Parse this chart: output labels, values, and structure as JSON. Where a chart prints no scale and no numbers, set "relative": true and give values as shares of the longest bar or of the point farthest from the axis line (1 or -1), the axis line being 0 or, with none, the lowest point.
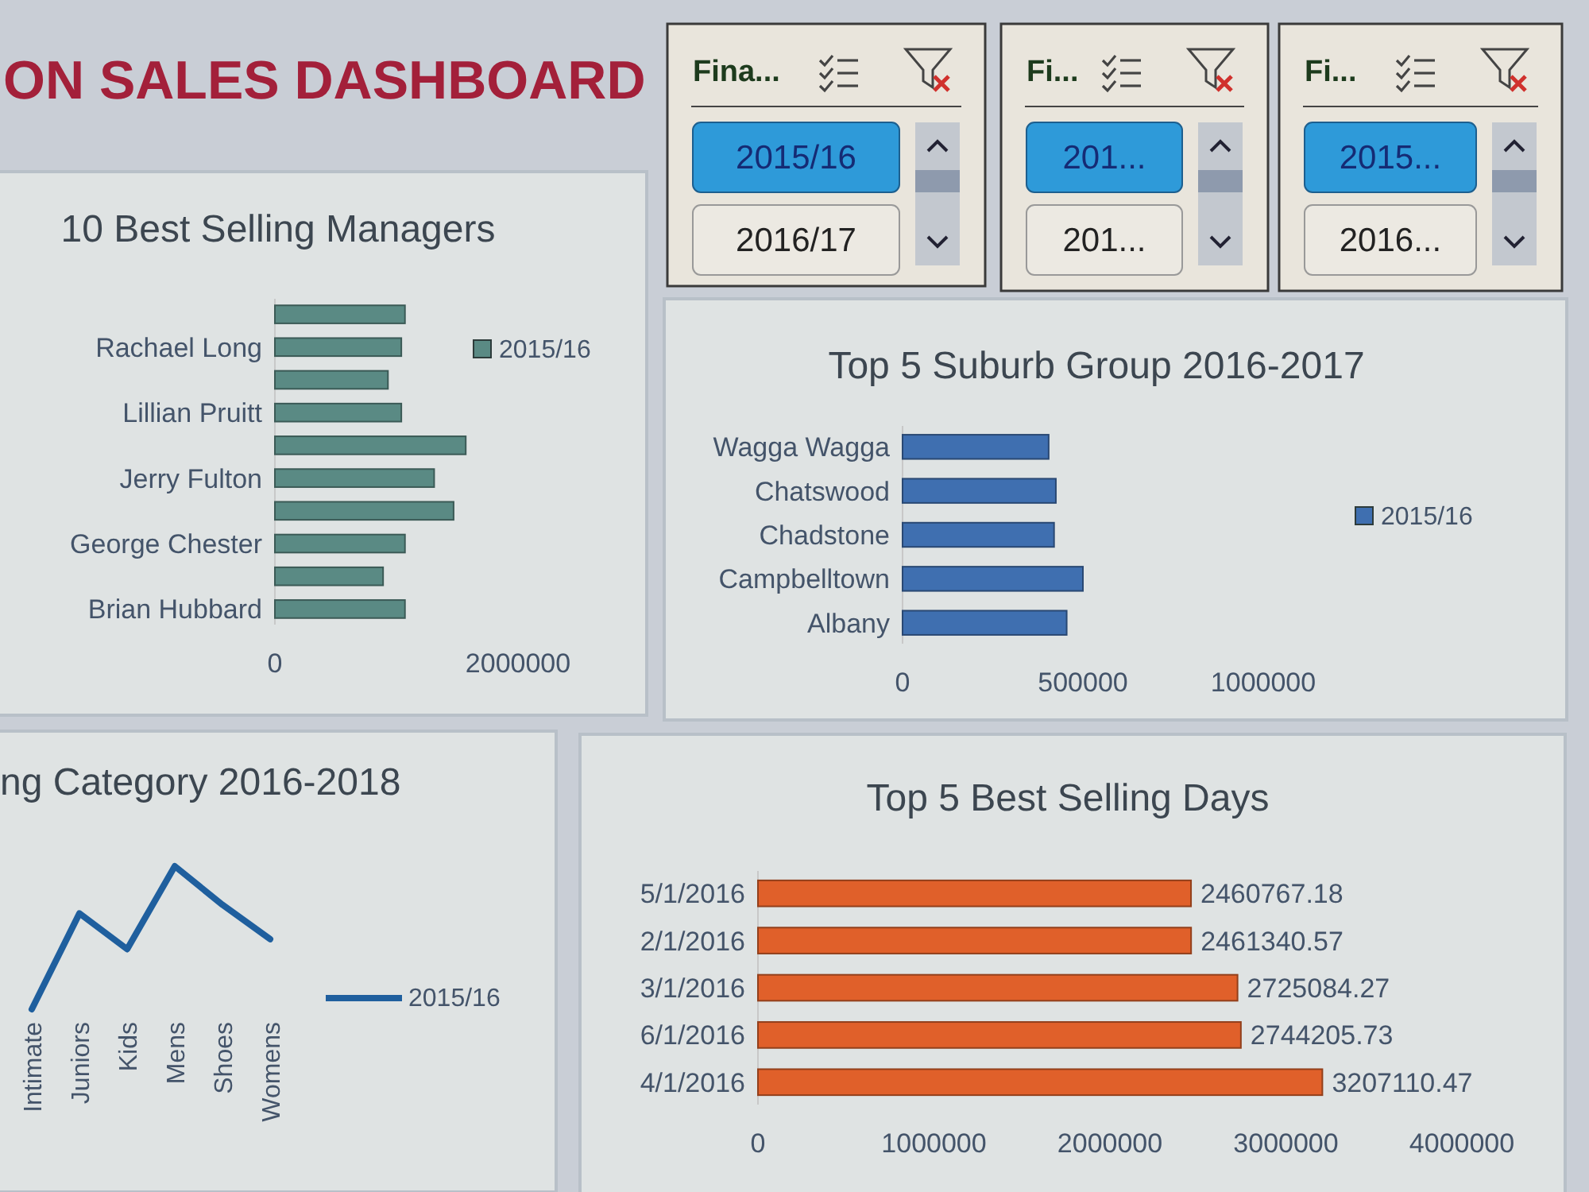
{
  "chart_data": [
    {
      "type": "other",
      "title": "ON SALES DASHBOARD"
    },
    {
      "type": "other",
      "title": "Fina...",
      "annotations": [
        "2015/16",
        "2016/17"
      ]
    },
    {
      "type": "other",
      "title": "Fi...",
      "annotations": [
        "201...",
        "201..."
      ]
    },
    {
      "type": "other",
      "title": "Fi...",
      "annotations": [
        "2015...",
        "2016..."
      ]
    },
    {
      "type": "bar",
      "orientation": "horizontal",
      "title": "10 Best Selling Managers",
      "categories": [
        null,
        "Rachael Long",
        null,
        "Lillian Pruitt",
        null,
        "Jerry Fulton",
        null,
        "George Chester",
        null,
        "Brian Hubbard"
      ],
      "series": [
        {
          "name": "2015/16",
          "color": "#5a8a84",
          "values": [
            1070000,
            1040000,
            930000,
            1040000,
            1570000,
            1310000,
            1470000,
            1070000,
            890000,
            1070000
          ]
        }
      ],
      "xlim": [
        0,
        2000000
      ],
      "xticks": [
        0,
        2000000
      ],
      "legend": "right"
    },
    {
      "type": "bar",
      "orientation": "horizontal",
      "title": "Top 5 Suburb Group 2016-2017",
      "categories": [
        "Wagga Wagga",
        "Chatswood",
        "Chadstone",
        "Campbelltown",
        "Albany"
      ],
      "series": [
        {
          "name": "2015/16",
          "color": "#3f6fb0",
          "values": [
            405000,
            425000,
            420000,
            500000,
            455000
          ]
        }
      ],
      "xlim": [
        0,
        1000000
      ],
      "xticks": [
        0,
        500000,
        1000000
      ],
      "legend": "right"
    },
    {
      "type": "line",
      "title": "ng Category 2016-2018",
      "categories": [
        "Intimate",
        "Juniors",
        "Kids",
        "Mens",
        "Shoes",
        "Womens"
      ],
      "relative": true,
      "series": [
        {
          "name": "2015/16",
          "color": "#1f5f9e",
          "values": [
            0,
            0.67,
            0.42,
            1,
            0.73,
            0.49
          ]
        }
      ],
      "legend": "right"
    },
    {
      "type": "bar",
      "orientation": "horizontal",
      "title": "Top 5 Best Selling Days",
      "categories": [
        "5/1/2016",
        "2/1/2016",
        "3/1/2016",
        "6/1/2016",
        "4/1/2016"
      ],
      "series": [
        {
          "color": "#e0602a",
          "values": [
            2460767.18,
            2461340.57,
            2725084.27,
            2744205.73,
            3207110.47
          ]
        }
      ],
      "xlim": [
        0,
        4000000
      ],
      "xticks": [
        0,
        1000000,
        2000000,
        3000000,
        4000000
      ],
      "data_labels": true
    }
  ]
}
